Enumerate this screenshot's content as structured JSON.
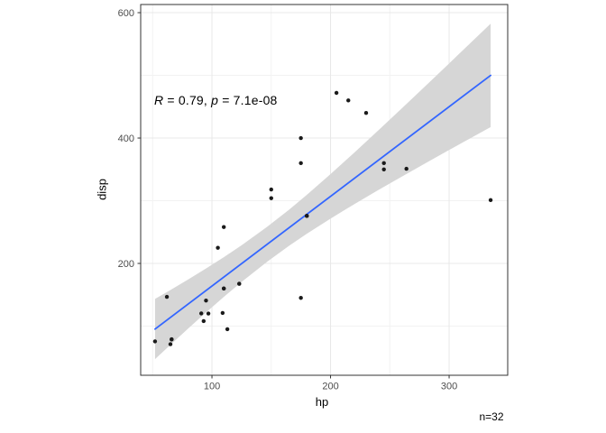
{
  "page": {
    "background": "#FFFFFF"
  },
  "chart_data": {
    "type": "scatter",
    "title": "",
    "xlabel": "hp",
    "ylabel": "disp",
    "annotation": {
      "full_text": "R = 0.79, p = 7.1e-08",
      "parts": [
        {
          "text": "R",
          "italic": true
        },
        {
          "text": " = 0.79, ",
          "italic": false
        },
        {
          "text": "p",
          "italic": true
        },
        {
          "text": " = 7.1e-08",
          "italic": false
        }
      ]
    },
    "sample_label": "n=32",
    "x_ticks": [
      100,
      200,
      300
    ],
    "y_ticks": [
      200,
      400,
      600
    ],
    "x_minor_ticks": [
      50,
      150,
      250
    ],
    "y_minor_ticks": [
      100,
      300,
      500
    ],
    "xlim": [
      39.9,
      349.4
    ],
    "ylim": [
      21.6,
      613
    ],
    "grid": true,
    "legend": "none",
    "points": [
      [
        110,
        160
      ],
      [
        110,
        160
      ],
      [
        93,
        108
      ],
      [
        110,
        258
      ],
      [
        175,
        360
      ],
      [
        105,
        225
      ],
      [
        245,
        360
      ],
      [
        62,
        146.7
      ],
      [
        95,
        140.8
      ],
      [
        123,
        167.6
      ],
      [
        123,
        167.6
      ],
      [
        180,
        275.8
      ],
      [
        180,
        275.8
      ],
      [
        180,
        275.8
      ],
      [
        205,
        472
      ],
      [
        215,
        460
      ],
      [
        230,
        440
      ],
      [
        66,
        78.7
      ],
      [
        52,
        75.7
      ],
      [
        65,
        71.1
      ],
      [
        97,
        120.1
      ],
      [
        150,
        318
      ],
      [
        150,
        304
      ],
      [
        245,
        350
      ],
      [
        175,
        400
      ],
      [
        66,
        79
      ],
      [
        91,
        120.3
      ],
      [
        113,
        95.1
      ],
      [
        264,
        351
      ],
      [
        175,
        145
      ],
      [
        335,
        301
      ],
      [
        109,
        121
      ]
    ],
    "regression_line": {
      "x": [
        52,
        335
      ],
      "y": [
        95.3,
        500.0
      ]
    },
    "ci_band": {
      "x": [
        52,
        65,
        80,
        95,
        110,
        125,
        146.7,
        165,
        180,
        200,
        220,
        240,
        260,
        280,
        300,
        320,
        335
      ],
      "lower": [
        47.4,
        70.2,
        96.3,
        121.7,
        146.6,
        170.5,
        202.9,
        228.1,
        247.3,
        271.5,
        294.5,
        316.7,
        338.4,
        359.8,
        380.9,
        401.9,
        417.5
      ],
      "upper": [
        143.3,
        157.6,
        174.5,
        191.9,
        210.0,
        228.9,
        258.6,
        285.7,
        309.4,
        342.5,
        376.7,
        411.7,
        447.2,
        483.0,
        519.0,
        555.3,
        582.5
      ]
    },
    "colors": {
      "line": "#3366FF",
      "ribbon": "#D6D6D6",
      "point": "#1A1A1A",
      "grid_major": "#E8E8E8",
      "grid_minor": "#F2F2F2",
      "panel_border": "#333333",
      "tick_mark": "#333333",
      "tick_label": "#4D4D4D",
      "panel_bg": "#FFFFFF"
    }
  }
}
